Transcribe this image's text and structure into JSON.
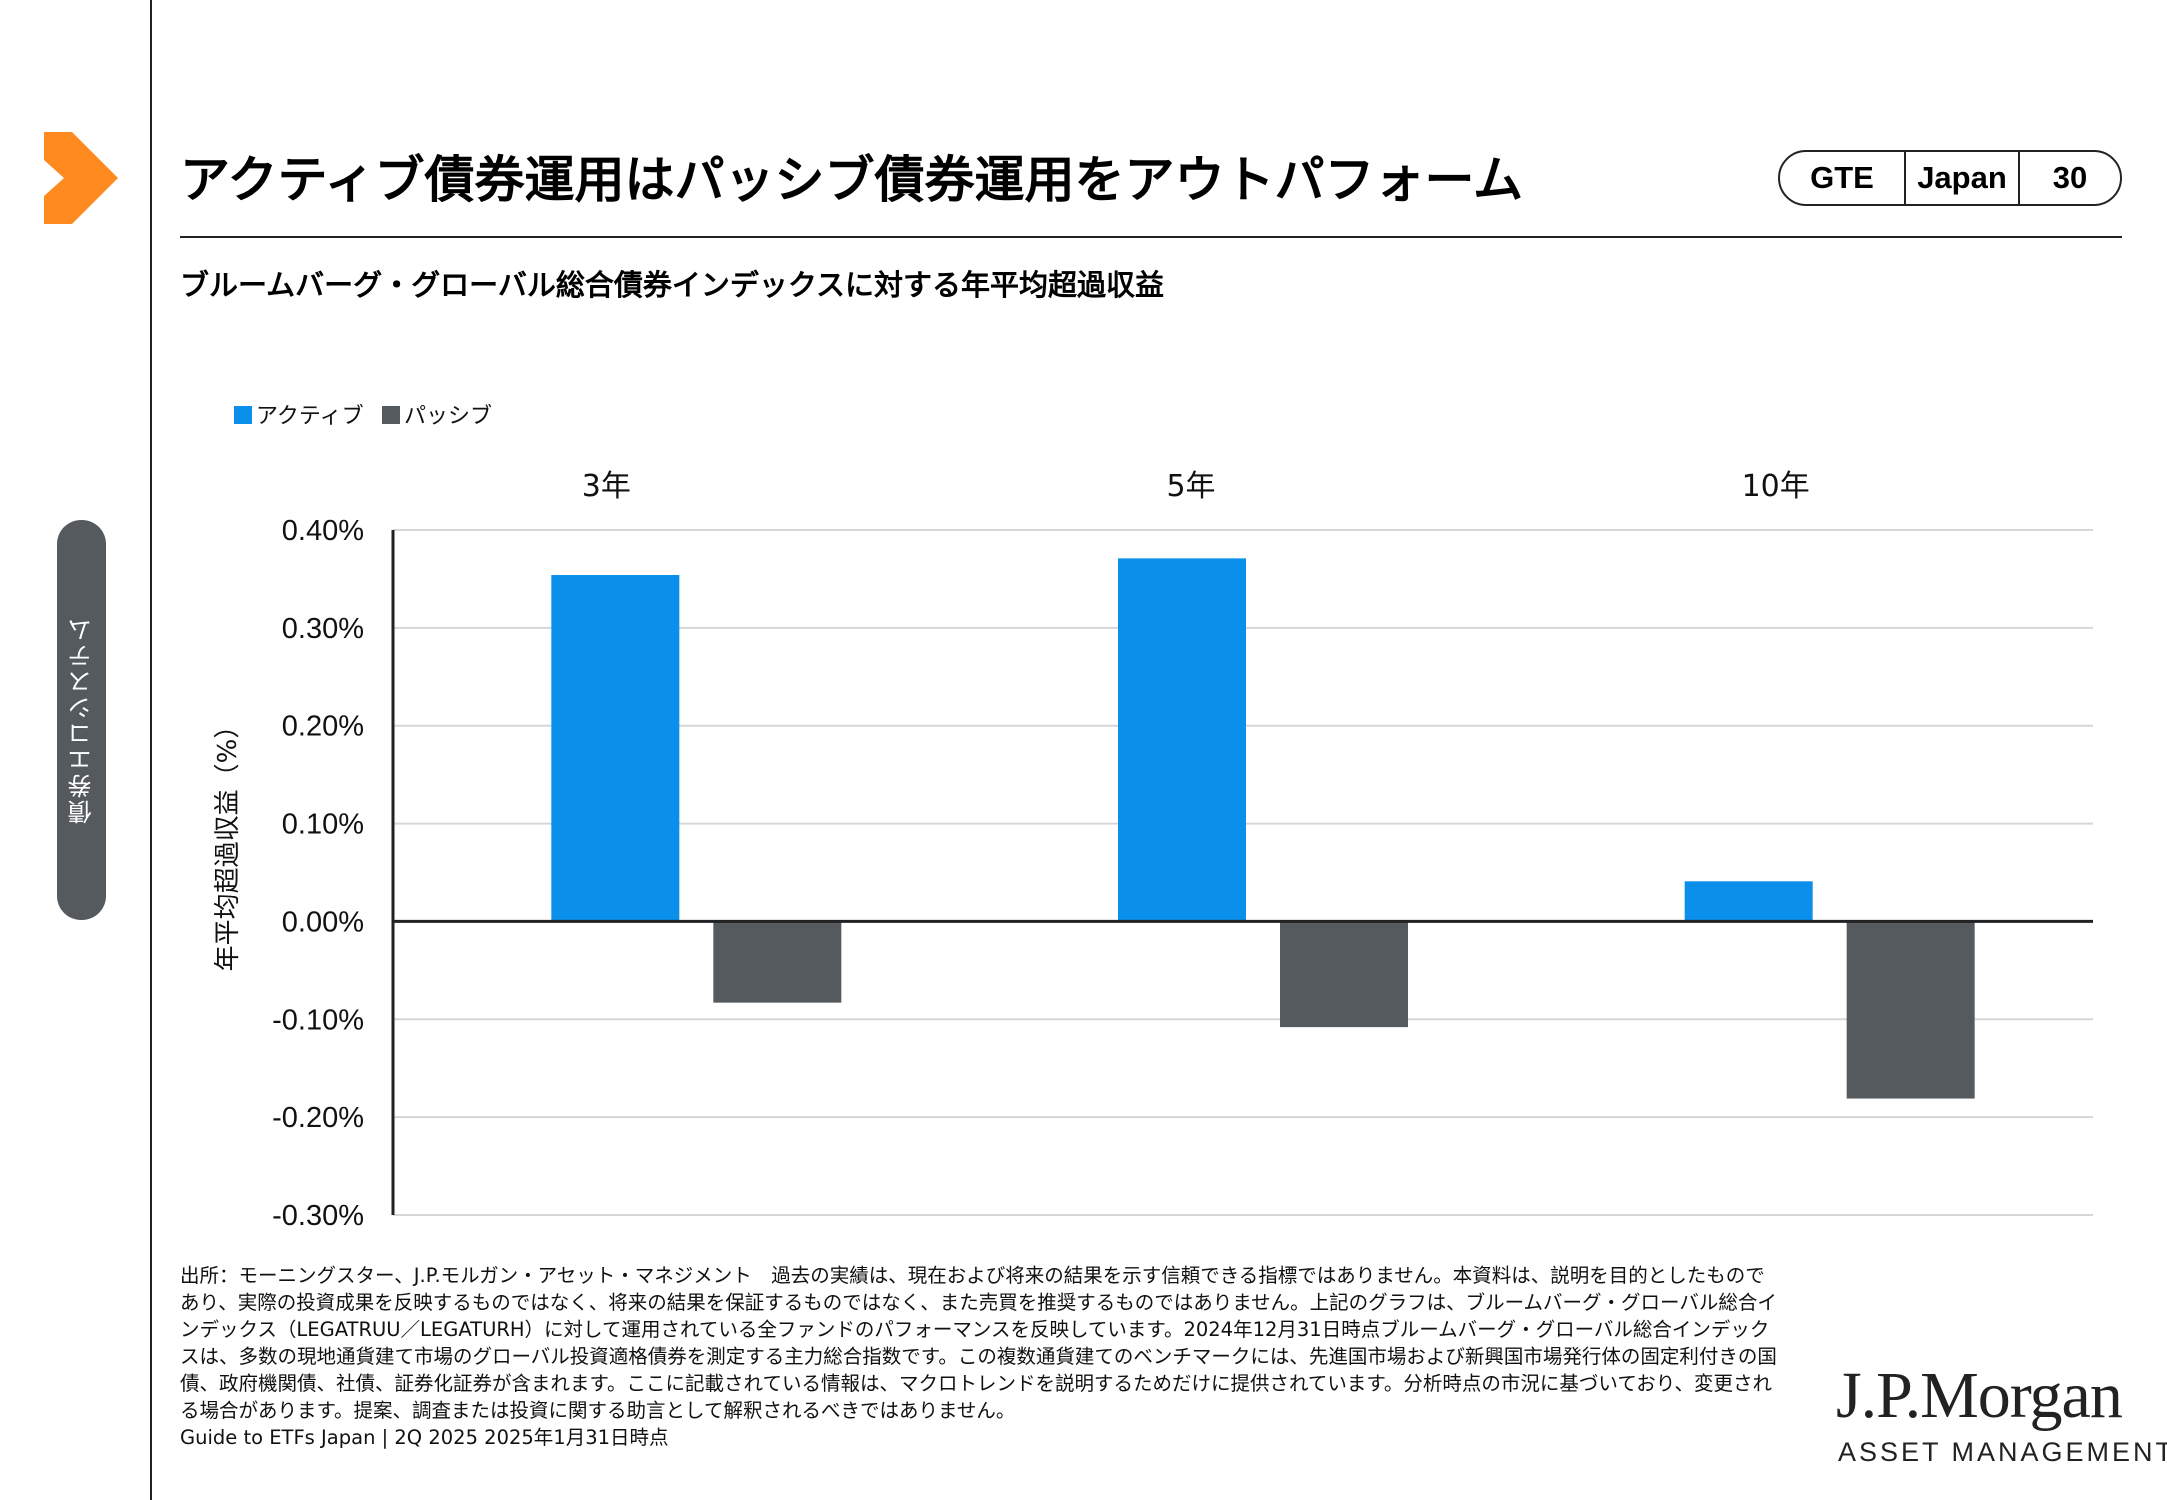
{
  "header": {
    "title": "アクティブ債券運用はパッシブ債券運用をアウトパフォーム",
    "badge": {
      "left": "GTE",
      "middle": "Japan",
      "page": "30"
    }
  },
  "sidebar": {
    "tab_label": "債券エコシステム"
  },
  "colors": {
    "accent": "#ff8a1f",
    "active": "#0a8fea",
    "passive": "#555a5e"
  },
  "chart_data": {
    "type": "bar",
    "title": "ブルームバーグ・グローバル総合債券インデックスに対する年平均超過収益",
    "ylabel": "年平均超過収益（%）",
    "xlabel": "",
    "categories": [
      "3年",
      "5年",
      "10年"
    ],
    "series": [
      {
        "name": "アクティブ",
        "values": [
          0.354,
          0.371,
          0.041
        ]
      },
      {
        "name": "パッシブ",
        "values": [
          -0.083,
          -0.108,
          -0.181
        ]
      }
    ],
    "ylim": [
      -0.3,
      0.4
    ],
    "yticks": [
      0.4,
      0.3,
      0.2,
      0.1,
      0.0,
      -0.1,
      -0.2,
      -0.3
    ],
    "ytick_labels": [
      "0.40%",
      "0.30%",
      "0.20%",
      "0.10%",
      "0.00%",
      "-0.10%",
      "-0.20%",
      "-0.30%"
    ],
    "grid": true,
    "legend_position": "top-left"
  },
  "footnote": {
    "text": "出所：モーニングスター、J.P.モルガン・アセット・マネジメント　過去の実績は、現在および将来の結果を示す信頼できる指標ではありません。本資料は、説明を目的としたものであり、実際の投資成果を反映するものではなく、将来の結果を保証するものではなく、また売買を推奨するものではありません。上記のグラフは、ブルームバーグ・グローバル総合インデックス（LEGATRUU／LEGATURH）に対して運用されている全ファンドのパフォーマンスを反映しています。2024年12月31日時点ブルームバーグ・グローバル総合インデックスは、多数の現地通貨建て市場のグローバル投資適格債券を測定する主力総合指数です。この複数通貨建てのベンチマークには、先進国市場および新興国市場発行体の固定利付きの国債、政府機関債、社債、証券化証券が含まれます。ここに記載されている情報は、マクロトレンドを説明するためだけに提供されています。分析時点の市況に基づいており、変更される場合があります。提案、調査または投資に関する助言として解釈されるべきではありません。",
    "guide": "Guide to ETFs Japan | 2Q 2025 2025年1月31日時点"
  },
  "logo": {
    "main": "J.P.Morgan",
    "sub": "ASSET MANAGEMENT"
  }
}
